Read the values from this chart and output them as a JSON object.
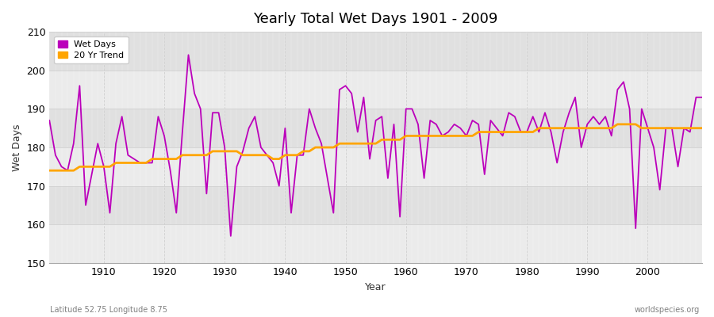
{
  "title": "Yearly Total Wet Days 1901 - 2009",
  "xlabel": "Year",
  "ylabel": "Wet Days",
  "lat_lon_label": "Latitude 52.75 Longitude 8.75",
  "source_label": "worldspecies.org",
  "ylim": [
    150,
    210
  ],
  "xlim": [
    1901,
    2009
  ],
  "yticks": [
    150,
    160,
    170,
    180,
    190,
    200,
    210
  ],
  "xticks": [
    1910,
    1920,
    1930,
    1940,
    1950,
    1960,
    1970,
    1980,
    1990,
    2000
  ],
  "line_color": "#bb00bb",
  "trend_color": "#ffa500",
  "bg_color": "#f0f0f0",
  "band_color1": "#ebebeb",
  "band_color2": "#e0e0e0",
  "grid_color": "#d0d0d0",
  "years": [
    1901,
    1902,
    1903,
    1904,
    1905,
    1906,
    1907,
    1908,
    1909,
    1910,
    1911,
    1912,
    1913,
    1914,
    1915,
    1916,
    1917,
    1918,
    1919,
    1920,
    1921,
    1922,
    1923,
    1924,
    1925,
    1926,
    1927,
    1928,
    1929,
    1930,
    1931,
    1932,
    1933,
    1934,
    1935,
    1936,
    1937,
    1938,
    1939,
    1940,
    1941,
    1942,
    1943,
    1944,
    1945,
    1946,
    1947,
    1948,
    1949,
    1950,
    1951,
    1952,
    1953,
    1954,
    1955,
    1956,
    1957,
    1958,
    1959,
    1960,
    1961,
    1962,
    1963,
    1964,
    1965,
    1966,
    1967,
    1968,
    1969,
    1970,
    1971,
    1972,
    1973,
    1974,
    1975,
    1976,
    1977,
    1978,
    1979,
    1980,
    1981,
    1982,
    1983,
    1984,
    1985,
    1986,
    1987,
    1988,
    1989,
    1990,
    1991,
    1992,
    1993,
    1994,
    1995,
    1996,
    1997,
    1998,
    1999,
    2000,
    2001,
    2002,
    2003,
    2004,
    2005,
    2006,
    2007,
    2008,
    2009
  ],
  "wet_days": [
    187,
    178,
    175,
    174,
    181,
    196,
    165,
    173,
    181,
    175,
    163,
    181,
    188,
    178,
    177,
    176,
    176,
    176,
    188,
    183,
    174,
    163,
    184,
    204,
    194,
    190,
    168,
    189,
    189,
    180,
    157,
    175,
    179,
    185,
    188,
    180,
    178,
    176,
    170,
    185,
    163,
    178,
    178,
    190,
    185,
    181,
    172,
    163,
    195,
    196,
    194,
    184,
    193,
    177,
    187,
    188,
    172,
    186,
    162,
    190,
    190,
    186,
    172,
    187,
    186,
    183,
    184,
    186,
    185,
    183,
    187,
    186,
    173,
    187,
    185,
    183,
    189,
    188,
    184,
    184,
    188,
    184,
    189,
    184,
    176,
    184,
    189,
    193,
    180,
    186,
    188,
    186,
    188,
    183,
    195,
    197,
    190,
    159,
    190,
    185,
    180,
    169,
    185,
    185,
    175,
    185,
    184,
    193,
    193
  ],
  "trend": [
    174,
    174,
    174,
    174,
    174,
    175,
    175,
    175,
    175,
    175,
    175,
    176,
    176,
    176,
    176,
    176,
    176,
    177,
    177,
    177,
    177,
    177,
    178,
    178,
    178,
    178,
    178,
    179,
    179,
    179,
    179,
    179,
    178,
    178,
    178,
    178,
    178,
    177,
    177,
    178,
    178,
    178,
    179,
    179,
    180,
    180,
    180,
    180,
    181,
    181,
    181,
    181,
    181,
    181,
    181,
    182,
    182,
    182,
    182,
    183,
    183,
    183,
    183,
    183,
    183,
    183,
    183,
    183,
    183,
    183,
    183,
    184,
    184,
    184,
    184,
    184,
    184,
    184,
    184,
    184,
    184,
    185,
    185,
    185,
    185,
    185,
    185,
    185,
    185,
    185,
    185,
    185,
    185,
    185,
    186,
    186,
    186,
    186,
    185,
    185,
    185,
    185,
    185,
    185,
    185,
    185,
    185,
    185,
    185
  ]
}
